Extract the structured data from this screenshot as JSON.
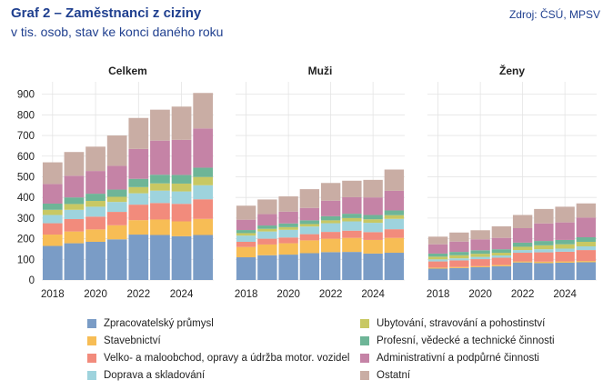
{
  "header": {
    "title": "Graf 2 – Zaměstnanci z ciziny",
    "subtitle": "v tis. osob, stav ke konci daného roku",
    "source": "Zdroj: ČSÚ, MPSV"
  },
  "chart_data": {
    "type": "bar",
    "stacked": true,
    "panels": [
      "Celkem",
      "Muži",
      "Ženy"
    ],
    "x": [
      2018,
      2019,
      2020,
      2021,
      2022,
      2023,
      2024,
      2025
    ],
    "x_ticks": [
      "2018",
      "2020",
      "2022",
      "2024"
    ],
    "y_ticks": [
      "0",
      "100",
      "200",
      "300",
      "400",
      "500",
      "600",
      "700",
      "800",
      "900"
    ],
    "ylim": [
      0,
      960
    ],
    "grid": true,
    "legend_position": "bottom",
    "series": [
      {
        "name": "Zpracovatelský průmysl",
        "color": "#7a9cc6",
        "values": [
          [
            165,
            178,
            185,
            197,
            220,
            218,
            212,
            218
          ],
          [
            110,
            120,
            123,
            130,
            135,
            136,
            128,
            132
          ],
          [
            55,
            58,
            62,
            67,
            85,
            82,
            84,
            86
          ]
        ]
      },
      {
        "name": "Stavebnictví",
        "color": "#f7bd55",
        "values": [
          [
            55,
            57,
            60,
            68,
            70,
            75,
            72,
            78
          ],
          [
            50,
            52,
            55,
            62,
            65,
            68,
            66,
            72
          ],
          [
            5,
            5,
            5,
            6,
            5,
            7,
            6,
            6
          ]
        ]
      },
      {
        "name": "Velko- a maloobchod,  opravy a údržba motor. vozidel",
        "color": "#f28b7c",
        "values": [
          [
            55,
            60,
            62,
            65,
            75,
            80,
            85,
            95
          ],
          [
            25,
            28,
            28,
            30,
            33,
            35,
            38,
            42
          ],
          [
            30,
            32,
            34,
            35,
            42,
            45,
            47,
            53
          ]
        ]
      },
      {
        "name": "Doprava a skladování",
        "color": "#9ed3dd",
        "values": [
          [
            40,
            45,
            48,
            48,
            55,
            60,
            60,
            68
          ],
          [
            30,
            35,
            37,
            37,
            42,
            45,
            45,
            50
          ],
          [
            10,
            10,
            11,
            11,
            13,
            15,
            15,
            18
          ]
        ]
      },
      {
        "name": "Ubytování, stravování a pohostinství",
        "color": "#c8c863",
        "values": [
          [
            25,
            28,
            28,
            25,
            30,
            35,
            38,
            40
          ],
          [
            12,
            13,
            13,
            12,
            14,
            16,
            17,
            18
          ],
          [
            13,
            15,
            15,
            13,
            16,
            19,
            21,
            22
          ]
        ]
      },
      {
        "name": "Profesní, vědecké a technické činnosti",
        "color": "#6eb597",
        "values": [
          [
            30,
            32,
            35,
            35,
            40,
            42,
            42,
            45
          ],
          [
            15,
            16,
            18,
            18,
            20,
            21,
            21,
            23
          ],
          [
            15,
            16,
            17,
            17,
            20,
            21,
            21,
            22
          ]
        ]
      },
      {
        "name": "Administrativní a podpůrné činnosti",
        "color": "#c583a6",
        "values": [
          [
            95,
            105,
            110,
            115,
            145,
            165,
            170,
            190
          ],
          [
            50,
            55,
            57,
            60,
            75,
            80,
            85,
            95
          ],
          [
            45,
            50,
            53,
            55,
            70,
            85,
            85,
            95
          ]
        ]
      },
      {
        "name": "Ostatní",
        "color": "#c9ada4",
        "values": [
          [
            105,
            115,
            118,
            147,
            150,
            150,
            161,
            172
          ],
          [
            68,
            71,
            74,
            91,
            86,
            80,
            85,
            103
          ],
          [
            37,
            44,
            44,
            56,
            64,
            70,
            76,
            69
          ]
        ]
      }
    ]
  }
}
